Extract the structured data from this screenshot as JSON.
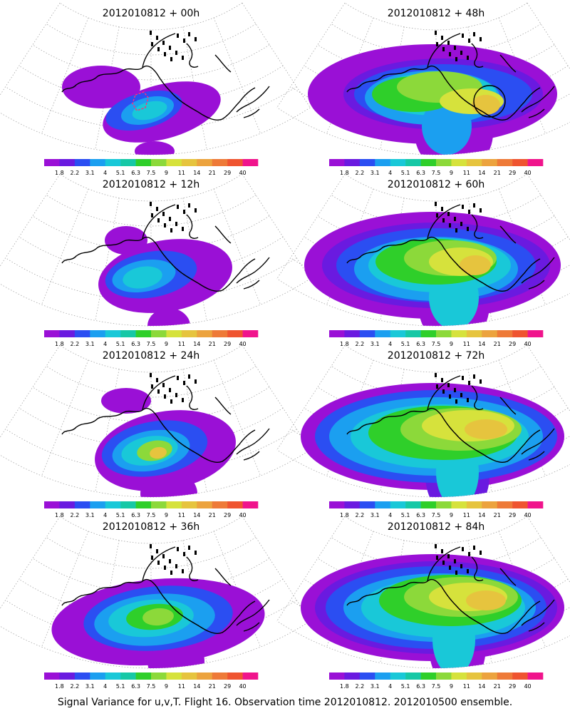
{
  "colors": {
    "background": "#ffffff",
    "coast": "#000000",
    "graticule": "#9a9a9a",
    "observation_marker": "#ff2d7a",
    "highlight_circle": "#000000"
  },
  "colorbar": {
    "colors": [
      "#9a10d6",
      "#6a1ae0",
      "#2b4ef2",
      "#1b9ff0",
      "#19c8d8",
      "#16c8a6",
      "#2fcf2a",
      "#8cd93a",
      "#d6e23c",
      "#e6c43e",
      "#eca33e",
      "#ee7a38",
      "#ef5430",
      "#f0148c"
    ],
    "labels": [
      "1.8",
      "2.2",
      "3.1",
      "4",
      "5.1",
      "6.3",
      "7.5",
      "9",
      "11",
      "14",
      "21",
      "29",
      "40"
    ]
  },
  "footer": {
    "caption": "Signal Variance for u,v,T. Flight 16. Observation time 2012010812. 2012010500 ensemble."
  },
  "chart_data": [
    {
      "type": "heatmap",
      "title": "2012010812 + 00h",
      "lead_hours": 0,
      "observation_marker": true,
      "highlight_circle": false
    },
    {
      "type": "heatmap",
      "title": "2012010812 + 48h",
      "lead_hours": 48,
      "observation_marker": false,
      "highlight_circle": true
    },
    {
      "type": "heatmap",
      "title": "2012010812 + 12h",
      "lead_hours": 12,
      "observation_marker": false,
      "highlight_circle": false
    },
    {
      "type": "heatmap",
      "title": "2012010812 + 60h",
      "lead_hours": 60,
      "observation_marker": false,
      "highlight_circle": false
    },
    {
      "type": "heatmap",
      "title": "2012010812 + 24h",
      "lead_hours": 24,
      "observation_marker": false,
      "highlight_circle": false
    },
    {
      "type": "heatmap",
      "title": "2012010812 + 72h",
      "lead_hours": 72,
      "observation_marker": false,
      "highlight_circle": false
    },
    {
      "type": "heatmap",
      "title": "2012010812 + 36h",
      "lead_hours": 36,
      "observation_marker": false,
      "highlight_circle": false
    },
    {
      "type": "heatmap",
      "title": "2012010812 + 84h",
      "lead_hours": 84,
      "observation_marker": false,
      "highlight_circle": false
    }
  ]
}
